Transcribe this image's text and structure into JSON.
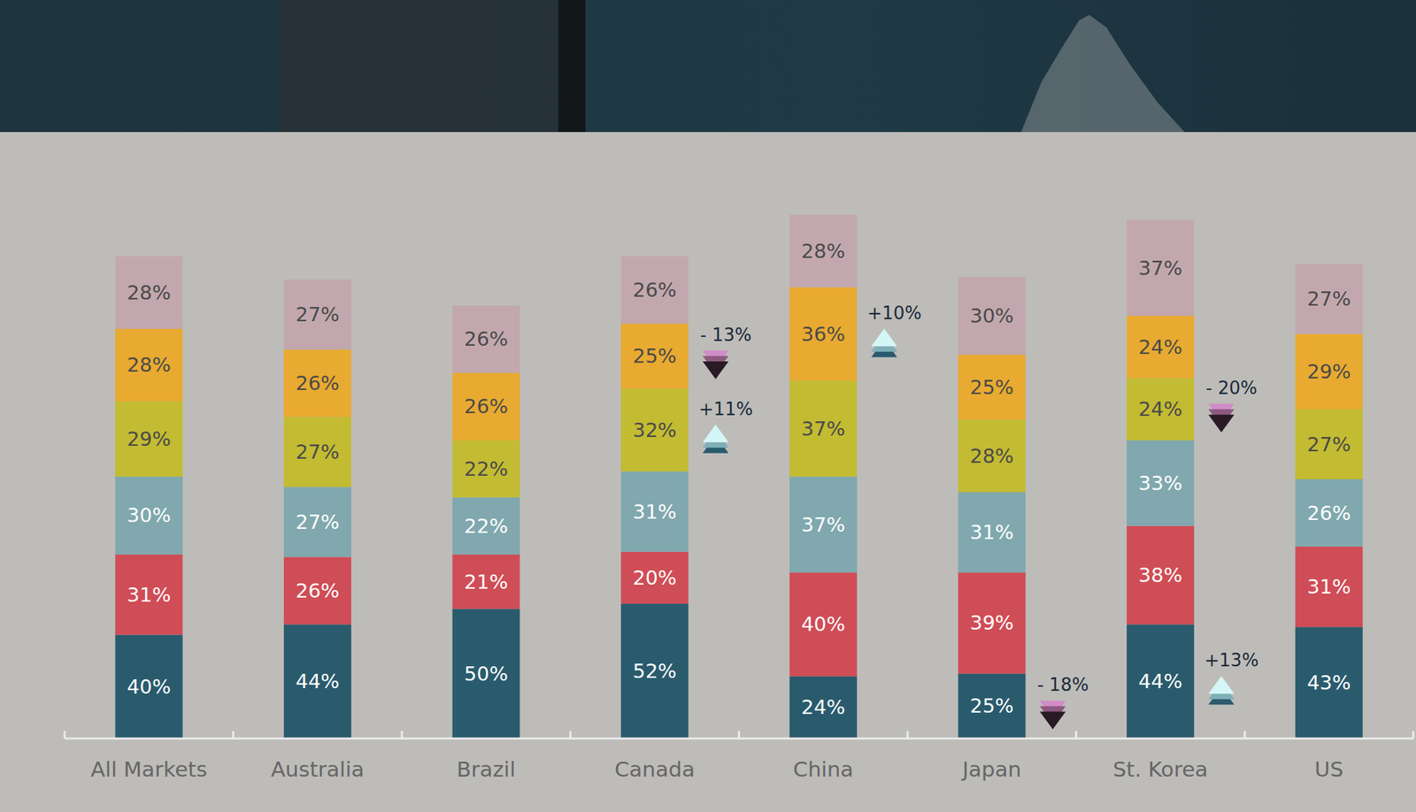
{
  "chart_data": {
    "type": "bar",
    "stacked": true,
    "data_labels": true,
    "grid": false,
    "tick_labels": "x",
    "categories": [
      "All Markets",
      "Australia",
      "Brazil",
      "Canada",
      "China",
      "Japan",
      "St. Korea",
      "US"
    ],
    "ylim": [
      0,
      210
    ],
    "series": [
      {
        "color": "#2a5b6d",
        "values": [
          40,
          44,
          50,
          52,
          24,
          25,
          44,
          43
        ],
        "value_labels": [
          "40%",
          "44%",
          "50%",
          "52%",
          "24%",
          "25%",
          "44%",
          "43%"
        ]
      },
      {
        "color": "#cf4d56",
        "values": [
          31,
          26,
          21,
          20,
          40,
          39,
          38,
          31
        ],
        "value_labels": [
          "31%",
          "26%",
          "21%",
          "20%",
          "40%",
          "39%",
          "38%",
          "31%"
        ]
      },
      {
        "color": "#80a8ae",
        "values": [
          30,
          27,
          22,
          31,
          37,
          31,
          33,
          26
        ],
        "value_labels": [
          "30%",
          "27%",
          "22%",
          "31%",
          "37%",
          "31%",
          "33%",
          "26%"
        ]
      },
      {
        "color": "#c3bb32",
        "values": [
          29,
          27,
          22,
          32,
          37,
          28,
          24,
          27
        ],
        "value_labels": [
          "29%",
          "27%",
          "22%",
          "32%",
          "37%",
          "28%",
          "24%",
          "27%"
        ]
      },
      {
        "color": "#e8aa30",
        "values": [
          28,
          26,
          26,
          25,
          36,
          25,
          24,
          29
        ],
        "value_labels": [
          "28%",
          "26%",
          "26%",
          "25%",
          "36%",
          "25%",
          "24%",
          "29%"
        ]
      },
      {
        "color": "#c2a8ae",
        "values": [
          28,
          27,
          26,
          26,
          28,
          30,
          37,
          27
        ],
        "value_labels": [
          "28%",
          "27%",
          "26%",
          "26%",
          "28%",
          "30%",
          "37%",
          "27%"
        ]
      }
    ],
    "annotations": [
      {
        "text": "- 13%",
        "category": "Canada",
        "series": 4,
        "direction": "down"
      },
      {
        "text": "+11%",
        "category": "Canada",
        "series": 3,
        "direction": "up"
      },
      {
        "text": "+10%",
        "category": "China",
        "series": 4,
        "direction": "up"
      },
      {
        "text": "- 18%",
        "category": "Japan",
        "series": 0,
        "direction": "down"
      },
      {
        "text": "- 20%",
        "category": "St. Korea",
        "series": 3,
        "direction": "down"
      },
      {
        "text": "+13%",
        "category": "St. Korea",
        "series": 0,
        "direction": "up"
      }
    ]
  }
}
